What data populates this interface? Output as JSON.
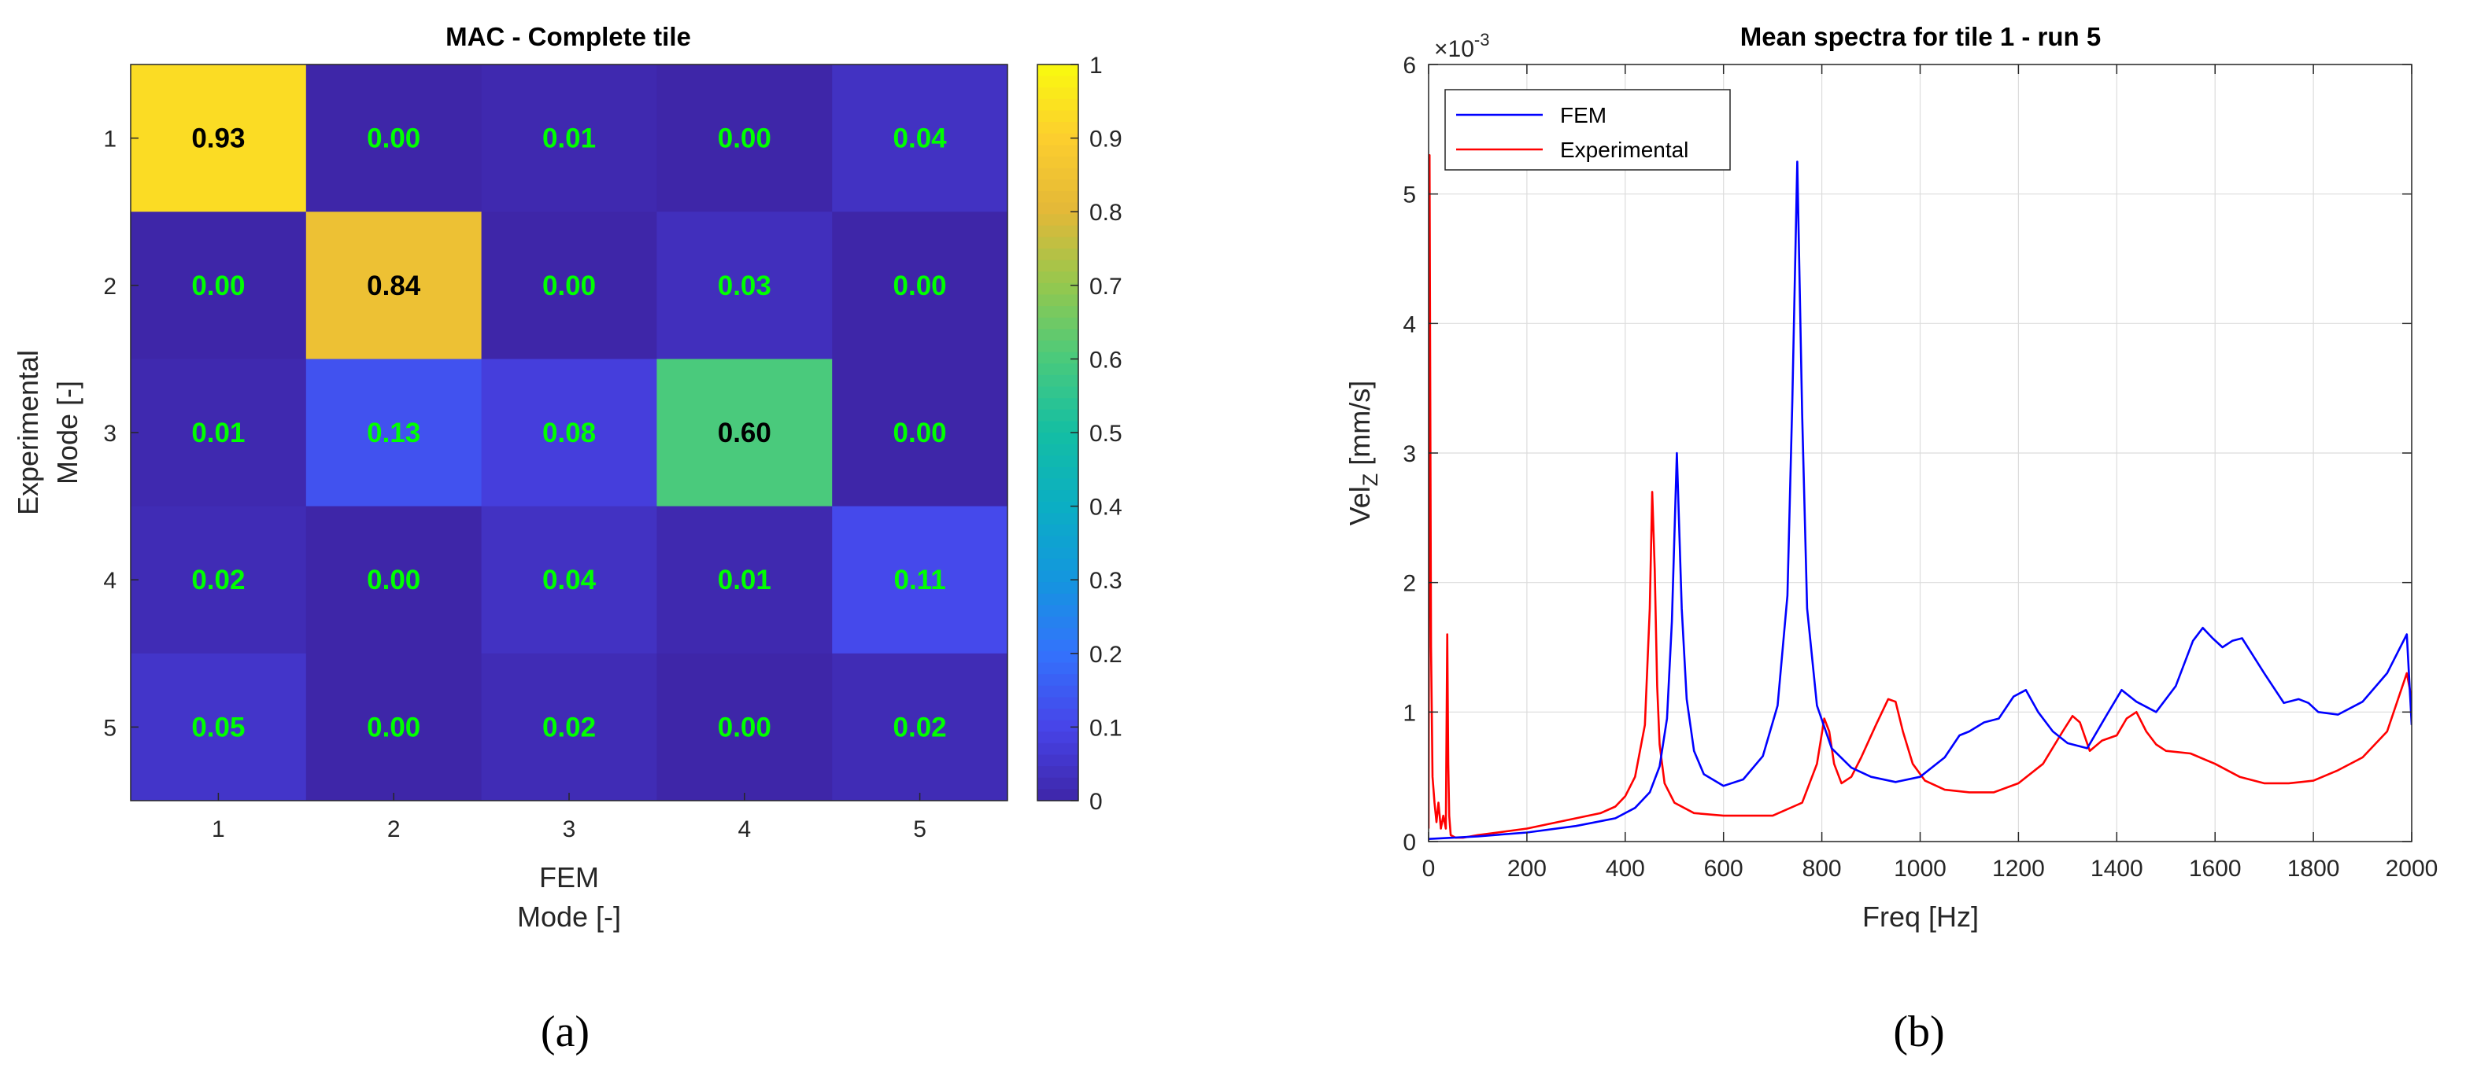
{
  "chart_data": [
    {
      "type": "heatmap",
      "title": "MAC - Complete tile",
      "xlabel_lines": [
        "FEM",
        "Mode [-]"
      ],
      "ylabel_lines": [
        "Experimental",
        "Mode [-]"
      ],
      "x_categories": [
        "1",
        "2",
        "3",
        "4",
        "5"
      ],
      "y_categories": [
        "1",
        "2",
        "3",
        "4",
        "5"
      ],
      "values": [
        [
          0.93,
          0.0,
          0.01,
          0.0,
          0.04
        ],
        [
          0.0,
          0.84,
          0.0,
          0.03,
          0.0
        ],
        [
          0.01,
          0.13,
          0.08,
          0.6,
          0.0
        ],
        [
          0.02,
          0.0,
          0.04,
          0.01,
          0.11
        ],
        [
          0.05,
          0.0,
          0.02,
          0.0,
          0.02
        ]
      ],
      "value_labels": [
        [
          "0.93",
          "0.00",
          "0.01",
          "0.00",
          "0.04"
        ],
        [
          "0.00",
          "0.84",
          "0.00",
          "0.03",
          "0.00"
        ],
        [
          "0.01",
          "0.13",
          "0.08",
          "0.60",
          "0.00"
        ],
        [
          "0.02",
          "0.00",
          "0.04",
          "0.01",
          "0.11"
        ],
        [
          "0.05",
          "0.00",
          "0.02",
          "0.00",
          "0.02"
        ]
      ],
      "colorbar": {
        "range": [
          0,
          1
        ],
        "ticks": [
          "0",
          "0.1",
          "0.2",
          "0.3",
          "0.4",
          "0.5",
          "0.6",
          "0.7",
          "0.8",
          "0.9",
          "1"
        ]
      },
      "colormap": "parula",
      "label_colors": {
        "highlight": "#000000",
        "normal": "#00ff00"
      },
      "caption": "(a)"
    },
    {
      "type": "line",
      "title": "Mean spectra for tile 1 - run 5",
      "xlabel": "Freq [Hz]",
      "ylabel_main": "Vel",
      "ylabel_sub": "Z",
      "ylabel_unit": " [mm/s]",
      "y_exponent_base": "×10",
      "y_exponent_power": "-3",
      "xlim": [
        0,
        2000
      ],
      "ylim": [
        0,
        6
      ],
      "x_ticks": [
        0,
        200,
        400,
        600,
        800,
        1000,
        1200,
        1400,
        1600,
        1800,
        2000
      ],
      "y_ticks": [
        0,
        1,
        2,
        3,
        4,
        5,
        6
      ],
      "grid": true,
      "legend_position": "top-left",
      "series": [
        {
          "name": "FEM",
          "color": "#0000ff",
          "x": [
            0,
            50,
            100,
            200,
            300,
            380,
            420,
            450,
            470,
            485,
            495,
            505,
            515,
            525,
            540,
            560,
            600,
            640,
            680,
            710,
            730,
            740,
            750,
            760,
            770,
            790,
            820,
            860,
            900,
            950,
            1000,
            1050,
            1080,
            1100,
            1130,
            1160,
            1190,
            1215,
            1240,
            1270,
            1300,
            1340,
            1380,
            1410,
            1440,
            1480,
            1520,
            1555,
            1575,
            1595,
            1615,
            1635,
            1655,
            1675,
            1700,
            1740,
            1770,
            1790,
            1810,
            1850,
            1900,
            1950,
            1990,
            2000
          ],
          "y": [
            0.02,
            0.03,
            0.04,
            0.07,
            0.12,
            0.18,
            0.26,
            0.38,
            0.58,
            0.95,
            1.7,
            3.0,
            1.8,
            1.1,
            0.7,
            0.52,
            0.43,
            0.48,
            0.66,
            1.05,
            1.9,
            3.4,
            5.25,
            3.3,
            1.8,
            1.05,
            0.72,
            0.57,
            0.5,
            0.46,
            0.5,
            0.65,
            0.82,
            0.85,
            0.92,
            0.95,
            1.12,
            1.17,
            1.0,
            0.85,
            0.76,
            0.72,
            0.98,
            1.17,
            1.08,
            1.0,
            1.2,
            1.55,
            1.65,
            1.57,
            1.5,
            1.55,
            1.57,
            1.45,
            1.3,
            1.07,
            1.1,
            1.07,
            1.0,
            0.98,
            1.08,
            1.3,
            1.6,
            0.9
          ]
        },
        {
          "name": "Experimental",
          "color": "#ff0000",
          "x": [
            0,
            2,
            5,
            8,
            12,
            16,
            20,
            25,
            30,
            35,
            38,
            40,
            42,
            45,
            55,
            70,
            100,
            200,
            300,
            350,
            380,
            400,
            420,
            440,
            450,
            455,
            460,
            465,
            470,
            480,
            500,
            540,
            600,
            700,
            760,
            790,
            805,
            815,
            825,
            840,
            860,
            880,
            910,
            935,
            950,
            965,
            985,
            1010,
            1050,
            1100,
            1150,
            1200,
            1250,
            1290,
            1310,
            1325,
            1345,
            1370,
            1400,
            1420,
            1440,
            1460,
            1480,
            1500,
            1550,
            1600,
            1650,
            1700,
            1750,
            1800,
            1850,
            1900,
            1950,
            1990,
            2000
          ],
          "y": [
            0.1,
            5.3,
            1.5,
            0.5,
            0.3,
            0.15,
            0.3,
            0.1,
            0.2,
            0.1,
            1.6,
            0.6,
            0.2,
            0.05,
            0.03,
            0.03,
            0.05,
            0.1,
            0.18,
            0.22,
            0.27,
            0.35,
            0.5,
            0.9,
            1.8,
            2.7,
            2.1,
            1.2,
            0.75,
            0.45,
            0.3,
            0.22,
            0.2,
            0.2,
            0.3,
            0.6,
            0.95,
            0.85,
            0.6,
            0.45,
            0.5,
            0.65,
            0.9,
            1.1,
            1.08,
            0.85,
            0.6,
            0.47,
            0.4,
            0.38,
            0.38,
            0.45,
            0.6,
            0.85,
            0.97,
            0.92,
            0.7,
            0.78,
            0.82,
            0.95,
            1.0,
            0.85,
            0.75,
            0.7,
            0.68,
            0.6,
            0.5,
            0.45,
            0.45,
            0.47,
            0.55,
            0.65,
            0.85,
            1.3,
            1.1
          ]
        }
      ],
      "caption": "(b)"
    }
  ]
}
